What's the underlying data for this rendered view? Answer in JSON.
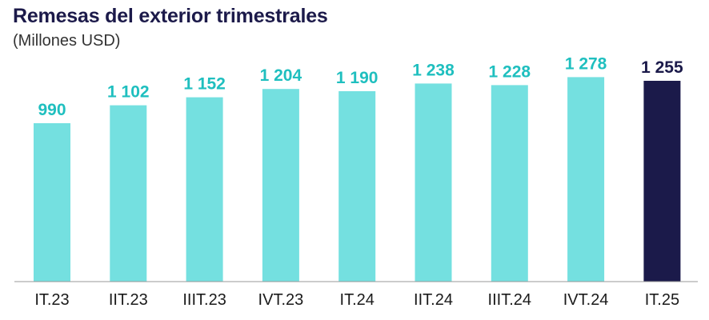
{
  "chart_data": {
    "type": "bar",
    "title": "Remesas del exterior trimestrales",
    "subtitle": "(Millones USD)",
    "categories": [
      "IT.23",
      "IIT.23",
      "IIIT.23",
      "IVT.23",
      "IT.24",
      "IIT.24",
      "IIIT.24",
      "IVT.24",
      "IT.25"
    ],
    "values": [
      990,
      1102,
      1152,
      1204,
      1190,
      1238,
      1228,
      1278,
      1255
    ],
    "value_labels": [
      "990",
      "1 102",
      "1 152",
      "1 204",
      "1 190",
      "1 238",
      "1 228",
      "1 278",
      "1 255"
    ],
    "highlight_index": 8,
    "colors": {
      "bar": "#74e0e0",
      "bar_highlight": "#1b1a4a",
      "label": "#1fbfbf",
      "label_highlight": "#1b1a4a",
      "axis": "#999999"
    },
    "xlabel": "",
    "ylabel": "",
    "ylim": [
      0,
      1400
    ],
    "grid": false,
    "legend": "none"
  }
}
